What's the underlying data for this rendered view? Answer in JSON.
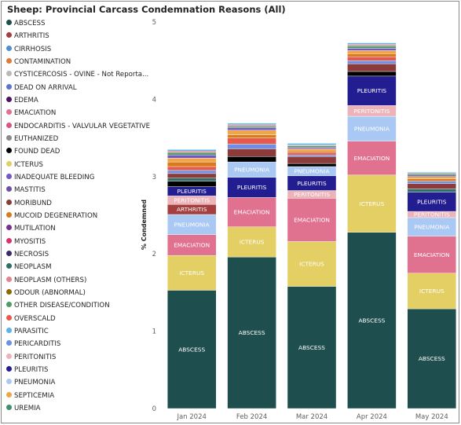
{
  "title": "Sheep: Provincial Carcass Condemnation Reasons (All)",
  "chart_data": {
    "type": "bar",
    "stacked": true,
    "ylabel": "% Condemned",
    "xlabel": "",
    "ylim": [
      0,
      5
    ],
    "yticks": [
      0,
      1,
      2,
      3,
      4,
      5
    ],
    "categories": [
      "Jan 2024",
      "Feb 2024",
      "Mar 2024",
      "Apr 2024",
      "May 2024"
    ],
    "legend_position": "left",
    "series": [
      {
        "name": "ABSCESS",
        "color": "#1f4e4e",
        "values": [
          1.53,
          1.96,
          1.58,
          2.28,
          1.29
        ]
      },
      {
        "name": "ICTERUS",
        "color": "#e3cf63",
        "values": [
          0.45,
          0.39,
          0.58,
          0.74,
          0.46
        ]
      },
      {
        "name": "EMACIATION",
        "color": "#e0718f",
        "values": [
          0.27,
          0.38,
          0.56,
          0.44,
          0.48
        ]
      },
      {
        "name": "PNEUMONIA",
        "color": "#a9c8f3",
        "values": [
          0.26,
          0.0,
          0.0,
          0.32,
          0.24
        ]
      },
      {
        "name": "ARTHRITIS",
        "color": "#a53f3f",
        "values": [
          0.13,
          0.0,
          0.0,
          0.0,
          0.0
        ]
      },
      {
        "name": "PERITONITIS",
        "color": "#ecb4b8",
        "values": [
          0.11,
          0.0,
          0.1,
          0.14,
          0.08
        ]
      },
      {
        "name": "PLEURITIS",
        "color": "#221d91",
        "values": [
          0.12,
          0.26,
          0.19,
          0.38,
          0.25
        ]
      },
      {
        "name": "PNEUMONIA",
        "color": "#a9c8f3",
        "values": [
          0.0,
          0.2,
          0.12,
          0.0,
          0.0
        ]
      },
      {
        "name": "FOUND DEAD",
        "color": "#000000",
        "values": [
          0.07,
          0.07,
          0.04,
          0.06,
          0.0
        ]
      },
      {
        "name": "NEOPLASM",
        "color": "#2e6f6a",
        "values": [
          0.04,
          0.0,
          0.0,
          0.0,
          0.04
        ]
      },
      {
        "name": "MORIBUND",
        "color": "#8c3b3b",
        "values": [
          0.06,
          0.1,
          0.09,
          0.1,
          0.07
        ]
      },
      {
        "name": "PERICARDITIS",
        "color": "#6c8fe8",
        "values": [
          0.04,
          0.06,
          0.02,
          0.04,
          0.03
        ]
      },
      {
        "name": "OVERSCALD",
        "color": "#e45b4c",
        "values": [
          0.05,
          0.08,
          0.03,
          0.05,
          0.0
        ]
      },
      {
        "name": "MUCOID DEGENERATION",
        "color": "#d97b1d",
        "values": [
          0.06,
          0.04,
          0.02,
          0.04,
          0.03
        ]
      },
      {
        "name": "SEPTICEMIA",
        "color": "#efa64a",
        "values": [
          0.05,
          0.06,
          0.03,
          0.04,
          0.03
        ]
      },
      {
        "name": "INADEQUATE BLEEDING",
        "color": "#7257c7",
        "values": [
          0.04,
          0.03,
          0.02,
          0.03,
          0.02
        ]
      },
      {
        "name": "OTHER DISEASE/CONDITION",
        "color": "#4e9e63",
        "values": [
          0.03,
          0.02,
          0.02,
          0.03,
          0.02
        ]
      },
      {
        "name": "NEOPLASM (OTHERS)",
        "color": "#e2838f",
        "values": [
          0.02,
          0.02,
          0.01,
          0.02,
          0.01
        ]
      },
      {
        "name": "PARASITIC",
        "color": "#5ab4e6",
        "values": [
          0.02,
          0.02,
          0.02,
          0.02,
          0.01
        ]
      }
    ],
    "segment_labels": [
      {
        "bar": 0,
        "series": 0,
        "text": "ABSCESS"
      },
      {
        "bar": 0,
        "series": 1,
        "text": "ICTERUS"
      },
      {
        "bar": 0,
        "series": 2,
        "text": "EMACIATION"
      },
      {
        "bar": 0,
        "series": 3,
        "text": "PNEUMONIA"
      },
      {
        "bar": 0,
        "series": 4,
        "text": "ARTHRITIS"
      },
      {
        "bar": 0,
        "series": 5,
        "text": "PERITONITIS"
      },
      {
        "bar": 0,
        "series": 6,
        "text": "PLEURITIS"
      },
      {
        "bar": 1,
        "series": 0,
        "text": "ABSCESS"
      },
      {
        "bar": 1,
        "series": 2,
        "text": "EMACIATION"
      },
      {
        "bar": 1,
        "series": 1,
        "text": "ICTERUS"
      },
      {
        "bar": 1,
        "series": 6,
        "text": "PLEURITIS"
      },
      {
        "bar": 1,
        "series": 7,
        "text": "PNEUMONIA"
      },
      {
        "bar": 2,
        "series": 0,
        "text": "ABSCESS"
      },
      {
        "bar": 2,
        "series": 1,
        "text": "ICTERUS"
      },
      {
        "bar": 2,
        "series": 2,
        "text": "EMACIATION"
      },
      {
        "bar": 2,
        "series": 6,
        "text": "PLEURITIS"
      },
      {
        "bar": 2,
        "series": 7,
        "text": "PNEUMONIA"
      },
      {
        "bar": 2,
        "series": 5,
        "text": "PERITONITIS"
      },
      {
        "bar": 3,
        "series": 0,
        "text": "ABSCESS"
      },
      {
        "bar": 3,
        "series": 1,
        "text": "ICTERUS"
      },
      {
        "bar": 3,
        "series": 2,
        "text": "EMACIATION"
      },
      {
        "bar": 3,
        "series": 6,
        "text": "PLEURITIS"
      },
      {
        "bar": 3,
        "series": 3,
        "text": "PNEUMONIA"
      },
      {
        "bar": 3,
        "series": 5,
        "text": "PERITONITIS"
      },
      {
        "bar": 4,
        "series": 0,
        "text": "ABSCESS"
      },
      {
        "bar": 4,
        "series": 2,
        "text": "EMACIATION"
      },
      {
        "bar": 4,
        "series": 1,
        "text": "ICTERUS"
      },
      {
        "bar": 4,
        "series": 6,
        "text": "PLEURITIS"
      },
      {
        "bar": 4,
        "series": 3,
        "text": "PNEUMONIA"
      },
      {
        "bar": 4,
        "series": 5,
        "text": "PERITONITIS"
      }
    ]
  },
  "legend": [
    {
      "label": "ABSCESS",
      "color": "#1f4e4e"
    },
    {
      "label": "ARTHRITIS",
      "color": "#a53f3f"
    },
    {
      "label": "CIRRHOSIS",
      "color": "#4f8fd6"
    },
    {
      "label": "CONTAMINATION",
      "color": "#e07a38"
    },
    {
      "label": "CYSTICERCOSIS - OVINE - Not Reporta...",
      "color": "#b9b9b9"
    },
    {
      "label": "DEAD ON ARRIVAL",
      "color": "#5b74d6"
    },
    {
      "label": "EDEMA",
      "color": "#4a1164"
    },
    {
      "label": "EMACIATION",
      "color": "#e0718f"
    },
    {
      "label": "ENDOCARDITIS - VALVULAR VEGETATIVE",
      "color": "#d9577e"
    },
    {
      "label": "EUTHANIZED",
      "color": "#8a8a8a"
    },
    {
      "label": "FOUND DEAD",
      "color": "#000000"
    },
    {
      "label": "ICTERUS",
      "color": "#e3cf63"
    },
    {
      "label": "INADEQUATE BLEEDING",
      "color": "#7257c7"
    },
    {
      "label": "MASTITIS",
      "color": "#6a51a3"
    },
    {
      "label": "MORIBUND",
      "color": "#8c3b3b"
    },
    {
      "label": "MUCOID DEGENERATION",
      "color": "#d97b1d"
    },
    {
      "label": "MUTILATION",
      "color": "#7a2e8e"
    },
    {
      "label": "MYOSITIS",
      "color": "#d6336c"
    },
    {
      "label": "NECROSIS",
      "color": "#3b2a6b"
    },
    {
      "label": "NEOPLASM",
      "color": "#2e6f6a"
    },
    {
      "label": "NEOPLASM (OTHERS)",
      "color": "#e2838f"
    },
    {
      "label": "ODOUR (ABNORMAL)",
      "color": "#8a6a00"
    },
    {
      "label": "OTHER DISEASE/CONDITION",
      "color": "#4e9e63"
    },
    {
      "label": "OVERSCALD",
      "color": "#e45b4c"
    },
    {
      "label": "PARASITIC",
      "color": "#5ab4e6"
    },
    {
      "label": "PERICARDITIS",
      "color": "#6c8fe8"
    },
    {
      "label": "PERITONITIS",
      "color": "#ecb4b8"
    },
    {
      "label": "PLEURITIS",
      "color": "#221d91"
    },
    {
      "label": "PNEUMONIA",
      "color": "#a9c8f3"
    },
    {
      "label": "SEPTICEMIA",
      "color": "#efa64a"
    },
    {
      "label": "UREMIA",
      "color": "#3f8f6e"
    }
  ]
}
